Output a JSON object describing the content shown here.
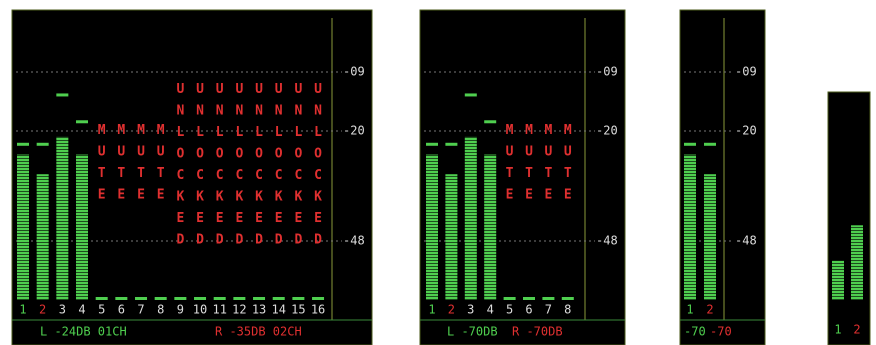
{
  "ylim": [
    -60,
    0
  ],
  "scale": [
    {
      "value": -9,
      "label": "-09"
    },
    {
      "value": -20,
      "label": "-20"
    },
    {
      "value": -48,
      "label": "-48"
    }
  ],
  "panels": [
    {
      "channels": [
        {
          "label": "1",
          "level": -26,
          "peak": -23
        },
        {
          "label": "2",
          "level": -31,
          "peak": -23
        },
        {
          "label": "3",
          "level": -21.5,
          "peak": -13
        },
        {
          "label": "4",
          "level": -26,
          "peak": -18
        },
        {
          "label": "5",
          "level": null,
          "peak": -60,
          "status": "MUTE"
        },
        {
          "label": "6",
          "level": null,
          "peak": -60,
          "status": "MUTE"
        },
        {
          "label": "7",
          "level": null,
          "peak": -60,
          "status": "MUTE"
        },
        {
          "label": "8",
          "level": null,
          "peak": -60,
          "status": "MUTE"
        },
        {
          "label": "9",
          "level": null,
          "peak": -60,
          "status": "UNLOCKED"
        },
        {
          "label": "10",
          "level": null,
          "peak": -60,
          "status": "UNLOCKED"
        },
        {
          "label": "11",
          "level": null,
          "peak": -60,
          "status": "UNLOCKED"
        },
        {
          "label": "12",
          "level": null,
          "peak": -60,
          "status": "UNLOCKED"
        },
        {
          "label": "13",
          "level": null,
          "peak": -60,
          "status": "UNLOCKED"
        },
        {
          "label": "14",
          "level": null,
          "peak": -60,
          "status": "UNLOCKED"
        },
        {
          "label": "15",
          "level": null,
          "peak": -60,
          "status": "UNLOCKED"
        },
        {
          "label": "16",
          "level": null,
          "peak": -60,
          "status": "UNLOCKED"
        }
      ],
      "status_left": "L -24DB 01CH",
      "status_right": "R -35DB 02CH"
    },
    {
      "channels": [
        {
          "label": "1",
          "level": -26,
          "peak": -23
        },
        {
          "label": "2",
          "level": -31,
          "peak": -23
        },
        {
          "label": "3",
          "level": -21.5,
          "peak": -13
        },
        {
          "label": "4",
          "level": -26,
          "peak": -18
        },
        {
          "label": "5",
          "level": null,
          "peak": -60,
          "status": "MUTE"
        },
        {
          "label": "6",
          "level": null,
          "peak": -60,
          "status": "MUTE"
        },
        {
          "label": "7",
          "level": null,
          "peak": -60,
          "status": "MUTE"
        },
        {
          "label": "8",
          "level": null,
          "peak": -60,
          "status": "MUTE"
        }
      ],
      "status_left": "L -70DB",
      "status_right": "R -70DB"
    },
    {
      "channels": [
        {
          "label": "1",
          "level": -26,
          "peak": -23
        },
        {
          "label": "2",
          "level": -31,
          "peak": -23
        }
      ],
      "status_left": "-70",
      "status_right": "-70"
    },
    {
      "channels": [
        {
          "label": "1",
          "level": -52
        },
        {
          "label": "2",
          "level": -44
        }
      ]
    }
  ]
}
